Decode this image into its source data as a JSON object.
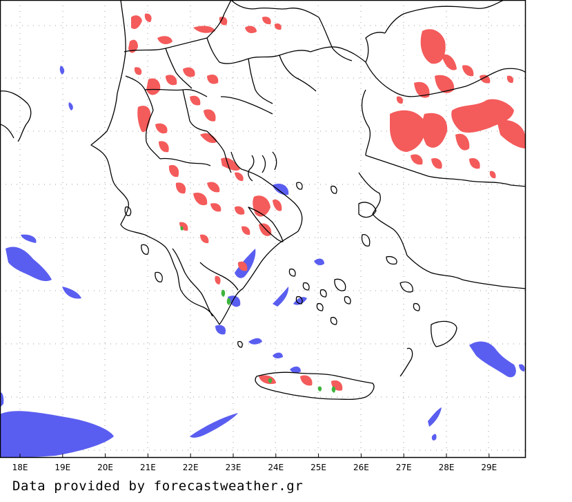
{
  "map": {
    "lon_labels": [
      "18E",
      "19E",
      "20E",
      "21E",
      "22E",
      "23E",
      "24E",
      "25E",
      "26E",
      "27E",
      "28E",
      "29E"
    ],
    "lat_labels": [],
    "grid": true,
    "legend": "none"
  },
  "colors": {
    "precip_red": "#f45b5b",
    "precip_blue": "#5a5ef0",
    "precip_green": "#3cb43c",
    "coastline": "#000000",
    "grid": "#999999"
  },
  "credit_text": "Data provided by forecastweather.gr"
}
